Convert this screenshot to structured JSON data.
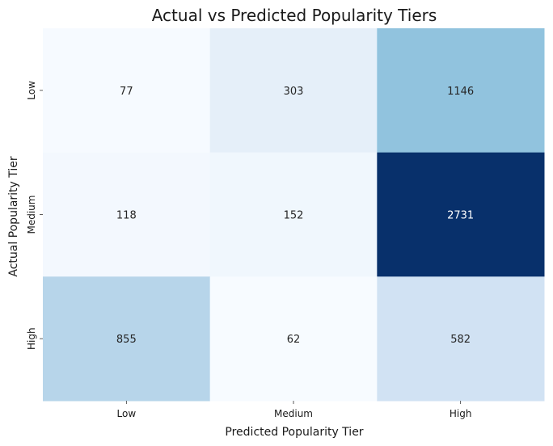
{
  "chart_data": {
    "type": "heatmap",
    "title": "Actual vs Predicted Popularity Tiers",
    "xlabel": "Predicted Popularity Tier",
    "ylabel": "Actual Popularity Tier",
    "x_categories": [
      "Low",
      "Medium",
      "High"
    ],
    "y_categories": [
      "Low",
      "Medium",
      "High"
    ],
    "values": [
      [
        77,
        303,
        1146
      ],
      [
        118,
        152,
        2731
      ],
      [
        855,
        62,
        582
      ]
    ],
    "colormap": "Blues",
    "color_low": "#f7fbff",
    "color_high": "#08306b",
    "text_color_light_cells": "#262626",
    "text_color_dark_cells": "#ffffff",
    "colorbar": false
  }
}
